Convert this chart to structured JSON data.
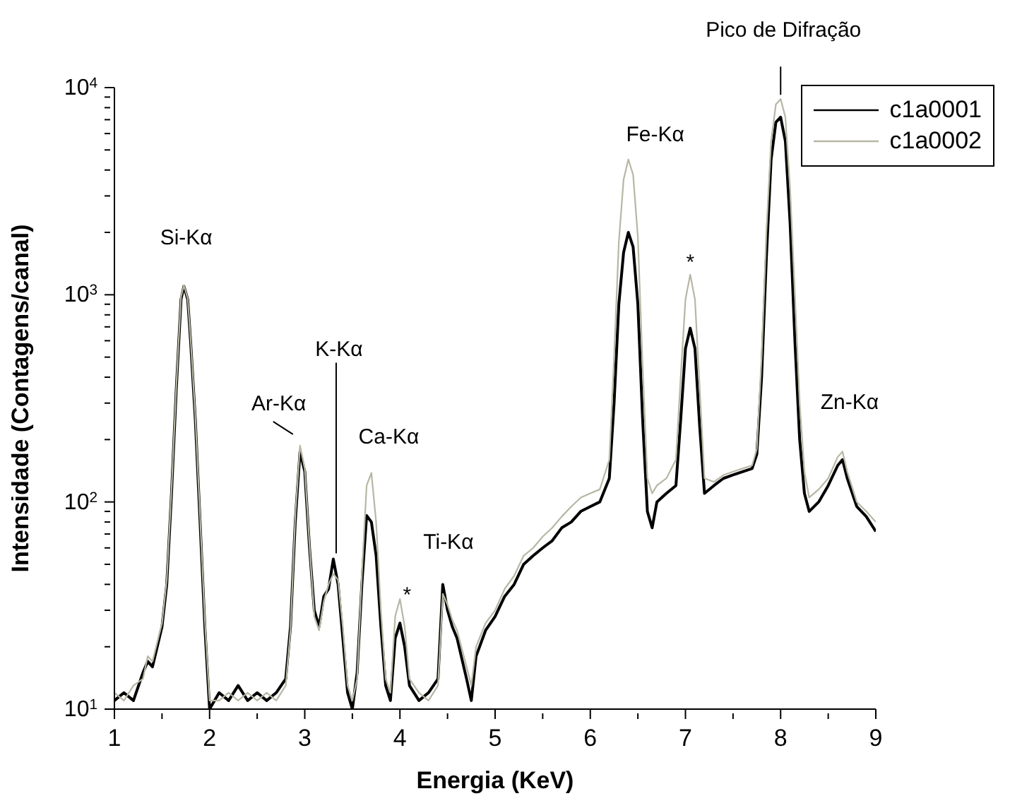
{
  "chart_data": {
    "type": "line",
    "xlabel": "Energia (KeV)",
    "ylabel": "Intensidade (Contagens/canal)",
    "x": [
      1.0,
      1.1,
      1.2,
      1.3,
      1.35,
      1.4,
      1.5,
      1.55,
      1.6,
      1.65,
      1.7,
      1.73,
      1.77,
      1.8,
      1.85,
      1.9,
      1.95,
      2.0,
      2.1,
      2.2,
      2.3,
      2.4,
      2.5,
      2.6,
      2.7,
      2.8,
      2.85,
      2.9,
      2.95,
      3.0,
      3.05,
      3.1,
      3.15,
      3.2,
      3.25,
      3.3,
      3.35,
      3.4,
      3.45,
      3.5,
      3.55,
      3.6,
      3.65,
      3.7,
      3.75,
      3.8,
      3.85,
      3.9,
      3.95,
      4.0,
      4.05,
      4.1,
      4.2,
      4.3,
      4.4,
      4.45,
      4.5,
      4.55,
      4.6,
      4.7,
      4.75,
      4.8,
      4.9,
      5.0,
      5.1,
      5.2,
      5.3,
      5.4,
      5.5,
      5.6,
      5.7,
      5.8,
      5.9,
      6.0,
      6.1,
      6.2,
      6.25,
      6.3,
      6.35,
      6.4,
      6.45,
      6.5,
      6.55,
      6.6,
      6.65,
      6.7,
      6.8,
      6.9,
      6.95,
      7.0,
      7.05,
      7.1,
      7.15,
      7.2,
      7.3,
      7.4,
      7.5,
      7.6,
      7.7,
      7.75,
      7.8,
      7.85,
      7.9,
      7.95,
      8.0,
      8.05,
      8.1,
      8.15,
      8.2,
      8.25,
      8.3,
      8.4,
      8.5,
      8.6,
      8.65,
      8.7,
      8.8,
      8.9,
      9.0
    ],
    "series": [
      {
        "name": "c1a0001",
        "color": "#000000",
        "values": [
          11,
          12,
          11,
          15,
          17,
          16,
          25,
          40,
          110,
          350,
          950,
          1100,
          950,
          600,
          250,
          80,
          25,
          10,
          12,
          11,
          13,
          11,
          12,
          11,
          12,
          14,
          25,
          80,
          175,
          140,
          60,
          30,
          25,
          35,
          38,
          53,
          40,
          22,
          12,
          10,
          15,
          40,
          86,
          80,
          55,
          25,
          13,
          11,
          22,
          26,
          20,
          13,
          11,
          12,
          14,
          40,
          30,
          25,
          22,
          14,
          11,
          18,
          24,
          28,
          35,
          40,
          50,
          55,
          60,
          65,
          75,
          80,
          90,
          95,
          100,
          130,
          300,
          900,
          1600,
          2000,
          1700,
          900,
          250,
          90,
          75,
          100,
          110,
          120,
          250,
          550,
          690,
          550,
          230,
          110,
          120,
          130,
          135,
          140,
          145,
          170,
          400,
          1500,
          4500,
          6800,
          7200,
          5500,
          2200,
          600,
          200,
          110,
          90,
          100,
          120,
          150,
          160,
          130,
          95,
          85,
          72
        ]
      },
      {
        "name": "c1a0002",
        "color": "#b8b6a4",
        "values": [
          12,
          11,
          13,
          14,
          18,
          17,
          26,
          42,
          115,
          360,
          980,
          1110,
          960,
          620,
          260,
          85,
          27,
          11,
          11,
          12,
          11,
          12,
          11,
          12,
          11,
          13,
          24,
          85,
          187,
          145,
          62,
          28,
          24,
          33,
          40,
          45,
          42,
          25,
          13,
          11,
          14,
          45,
          120,
          138,
          80,
          30,
          14,
          12,
          28,
          34,
          25,
          14,
          12,
          11,
          13,
          36,
          32,
          27,
          24,
          16,
          13,
          20,
          26,
          30,
          38,
          44,
          55,
          60,
          68,
          75,
          85,
          95,
          105,
          110,
          115,
          160,
          500,
          1800,
          3600,
          4500,
          3800,
          1900,
          450,
          130,
          110,
          120,
          130,
          160,
          400,
          950,
          1250,
          950,
          350,
          130,
          125,
          135,
          140,
          145,
          150,
          180,
          500,
          2000,
          5500,
          8300,
          8800,
          7200,
          3200,
          1000,
          300,
          140,
          105,
          115,
          130,
          165,
          175,
          140,
          100,
          90,
          80
        ]
      }
    ],
    "xlim": [
      1,
      9
    ],
    "xticks": [
      1,
      {
        "value": 1.5,
        "label": null
      },
      2,
      {
        "value": 2.5,
        "label": null
      },
      3,
      {
        "value": 3.5,
        "label": null
      },
      4,
      {
        "value": 4.5,
        "label": null
      },
      5,
      {
        "value": 5.5,
        "label": null
      },
      6,
      {
        "value": 6.5,
        "label": null
      },
      7,
      {
        "value": 7.5,
        "label": null
      },
      8,
      {
        "value": 8.5,
        "label": null
      },
      9
    ],
    "ylim": [
      10,
      10000
    ],
    "yticks": [
      {
        "value": 10,
        "label": "10$^{1}$"
      },
      {
        "value": 20,
        "label": null
      },
      {
        "value": 30,
        "label": null
      },
      {
        "value": 40,
        "label": null
      },
      {
        "value": 50,
        "label": null
      },
      {
        "value": 60,
        "label": null
      },
      {
        "value": 70,
        "label": null
      },
      {
        "value": 80,
        "label": null
      },
      {
        "value": 90,
        "label": null
      },
      {
        "value": 100,
        "label": "10$^{2}$"
      },
      {
        "value": 200,
        "label": null
      },
      {
        "value": 300,
        "label": null
      },
      {
        "value": 400,
        "label": null
      },
      {
        "value": 500,
        "label": null
      },
      {
        "value": 600,
        "label": null
      },
      {
        "value": 700,
        "label": null
      },
      {
        "value": 800,
        "label": null
      },
      {
        "value": 900,
        "label": null
      },
      {
        "value": 1000,
        "label": "10$^{3}$"
      },
      {
        "value": 2000,
        "label": null
      },
      {
        "value": 3000,
        "label": null
      },
      {
        "value": 4000,
        "label": null
      },
      {
        "value": 5000,
        "label": null
      },
      {
        "value": 6000,
        "label": null
      },
      {
        "value": 7000,
        "label": null
      },
      {
        "value": 8000,
        "label": null
      },
      {
        "value": 9000,
        "label": null
      },
      {
        "value": 10000,
        "label": "10$^{4}$"
      }
    ],
    "log": true,
    "legend": "top right",
    "annotations": [
      {
        "text": "Si-Kα",
        "x": 1.71,
        "y": 1110
      },
      {
        "text": "Ar-Kα",
        "x": 2.95,
        "y": 187
      },
      {
        "text": "K-Kα",
        "x": 3.33,
        "y": 53
      },
      {
        "text": "Ca-Kα",
        "x": 3.69,
        "y": 138
      },
      {
        "text": "*",
        "x": 4.0,
        "y": 34
      },
      {
        "text": "Ti-Kα",
        "x": 4.45,
        "y": 40
      },
      {
        "text": "Fe-Kα",
        "x": 6.4,
        "y": 4500
      },
      {
        "text": "*",
        "x": 7.05,
        "y": 1250
      },
      {
        "text": "Pico de Difração",
        "x": 8.0,
        "y": 8800
      },
      {
        "text": "Zn-Kα",
        "x": 8.65,
        "y": 175
      }
    ]
  }
}
